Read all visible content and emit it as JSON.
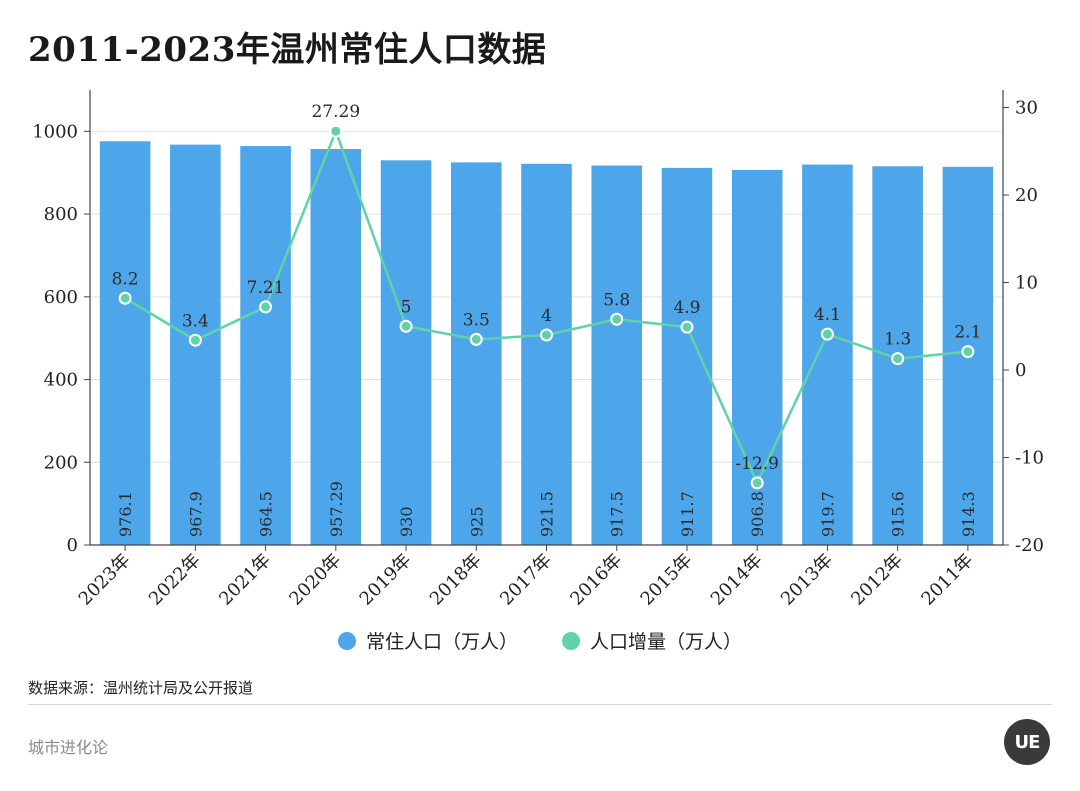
{
  "title": "2011-2023年温州常住人口数据",
  "source": "数据来源：温州统计局及公开报道",
  "brand": "城市进化论",
  "logo_text": "UE",
  "colors": {
    "bar": "#4ea6ea",
    "line": "#5fd3a7",
    "grid": "#e2e2e2",
    "axis": "#444444",
    "text": "#222222"
  },
  "chart_data": {
    "type": "bar",
    "categories": [
      "2023年",
      "2022年",
      "2021年",
      "2020年",
      "2019年",
      "2018年",
      "2017年",
      "2016年",
      "2015年",
      "2014年",
      "2013年",
      "2012年",
      "2011年"
    ],
    "series": [
      {
        "name": "常住人口（万人）",
        "type": "bar",
        "axis": "left",
        "values": [
          976.1,
          967.9,
          964.5,
          957.29,
          930,
          925,
          921.5,
          917.5,
          911.7,
          906.8,
          919.7,
          915.6,
          914.3
        ],
        "labels": [
          "976.1",
          "967.9",
          "964.5",
          "957.29",
          "930",
          "925",
          "921.5",
          "917.5",
          "911.7",
          "906.8",
          "919.7",
          "915.6",
          "914.3"
        ]
      },
      {
        "name": "人口增量（万人）",
        "type": "line",
        "axis": "right",
        "values": [
          8.2,
          3.4,
          7.21,
          27.29,
          5,
          3.5,
          4,
          5.8,
          4.9,
          -12.9,
          4.1,
          1.3,
          2.1
        ],
        "labels": [
          "8.2",
          "3.4",
          "7.21",
          "27.29",
          "5",
          "3.5",
          "4",
          "5.8",
          "4.9",
          "-12.9",
          "4.1",
          "1.3",
          "2.1"
        ]
      }
    ],
    "y_left": {
      "min": 0,
      "max": 1000,
      "ticks": [
        0,
        200,
        400,
        600,
        800,
        1000
      ],
      "max_display": 1100
    },
    "y_right": {
      "min": -20,
      "max": 30,
      "ticks": [
        -20,
        -10,
        0,
        10,
        20,
        30
      ],
      "max_display": 32
    },
    "grid": true,
    "legend_position": "bottom"
  },
  "legend": [
    {
      "label": "常住人口（万人）",
      "color": "#4ea6ea"
    },
    {
      "label": "人口增量（万人）",
      "color": "#5fd3a7"
    }
  ]
}
